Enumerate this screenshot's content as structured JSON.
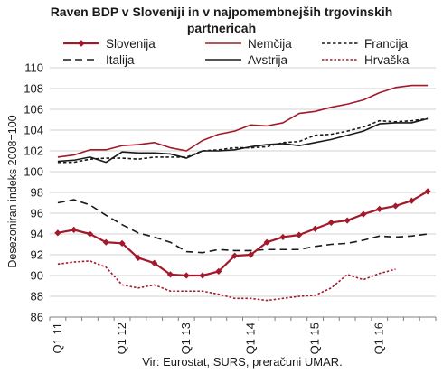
{
  "chart_data": {
    "type": "line",
    "title_line1": "Raven BDP v Sloveniji in v najpomembnejših trgovinskih",
    "title_line2": "partnericah",
    "ylabel": "Desezoniran indeks 2008=100",
    "source": "Vir: Eurostat, SURS, preračuni UMAR.",
    "ylim": [
      86,
      110
    ],
    "yticks": [
      "86",
      "88",
      "90",
      "92",
      "94",
      "96",
      "98",
      "100",
      "102",
      "104",
      "106",
      "108",
      "110"
    ],
    "grid": "horizontal",
    "legend_position": "top",
    "x": [
      "Q1 11",
      "Q2 11",
      "Q3 11",
      "Q4 11",
      "Q1 12",
      "Q2 12",
      "Q3 12",
      "Q4 12",
      "Q1 13",
      "Q2 13",
      "Q3 13",
      "Q4 13",
      "Q1 14",
      "Q2 14",
      "Q3 14",
      "Q4 14",
      "Q1 15",
      "Q2 15",
      "Q3 15",
      "Q4 15",
      "Q1 16",
      "Q2 16",
      "Q3 16",
      "Q4 16"
    ],
    "xtick_labels": [
      {
        "label": "Q1 11",
        "index": 0
      },
      {
        "label": "Q1 12",
        "index": 4
      },
      {
        "label": "Q1 13",
        "index": 8
      },
      {
        "label": "Q1 14",
        "index": 12
      },
      {
        "label": "Q1 15",
        "index": 16
      },
      {
        "label": "Q1 16",
        "index": 20
      }
    ],
    "series": [
      {
        "name": "Slovenija",
        "color": "#a3192b",
        "style": "solid-marker",
        "values": [
          94.1,
          94.4,
          94.0,
          93.2,
          93.1,
          91.7,
          91.2,
          90.1,
          90.0,
          90.0,
          90.4,
          91.9,
          92.0,
          93.2,
          93.7,
          93.9,
          94.5,
          95.1,
          95.3,
          95.9,
          96.4,
          96.7,
          97.2,
          98.1
        ]
      },
      {
        "name": "Nemčija",
        "color": "#a3192b",
        "style": "solid",
        "values": [
          101.4,
          101.6,
          102.1,
          102.1,
          102.5,
          102.6,
          102.8,
          102.3,
          102.0,
          103.0,
          103.6,
          103.9,
          104.5,
          104.4,
          104.7,
          105.6,
          105.8,
          106.2,
          106.5,
          106.9,
          107.6,
          108.1,
          108.3,
          108.3
        ]
      },
      {
        "name": "Francija",
        "color": "#1a1a1a",
        "style": "short-dash",
        "values": [
          100.9,
          100.9,
          101.2,
          101.3,
          101.3,
          101.2,
          101.4,
          101.4,
          101.4,
          102.0,
          102.1,
          102.3,
          102.3,
          102.4,
          102.8,
          102.9,
          103.5,
          103.6,
          103.9,
          104.3,
          104.9,
          104.8,
          104.9,
          105.1
        ]
      },
      {
        "name": "Italija",
        "color": "#1a1a1a",
        "style": "long-dash",
        "values": [
          97.0,
          97.3,
          96.8,
          95.8,
          94.9,
          94.1,
          93.7,
          93.2,
          92.3,
          92.2,
          92.5,
          92.4,
          92.4,
          92.5,
          92.5,
          92.5,
          92.8,
          93.0,
          93.1,
          93.4,
          93.8,
          93.7,
          93.8,
          94.0
        ]
      },
      {
        "name": "Avstrija",
        "color": "#1a1a1a",
        "style": "solid",
        "values": [
          101.0,
          101.1,
          101.4,
          100.9,
          101.9,
          101.8,
          101.8,
          101.7,
          101.3,
          102.0,
          102.0,
          102.1,
          102.4,
          102.6,
          102.7,
          102.5,
          102.8,
          103.1,
          103.5,
          103.9,
          104.6,
          104.7,
          104.7,
          105.1
        ]
      },
      {
        "name": "Hrvaška",
        "color": "#a3192b",
        "style": "dotted",
        "values": [
          91.1,
          91.3,
          91.4,
          90.8,
          89.1,
          88.8,
          89.1,
          88.5,
          88.5,
          88.5,
          88.2,
          87.8,
          87.8,
          87.6,
          87.8,
          88.0,
          88.1,
          88.8,
          90.1,
          89.6,
          90.2,
          90.6,
          null,
          null
        ]
      }
    ]
  }
}
